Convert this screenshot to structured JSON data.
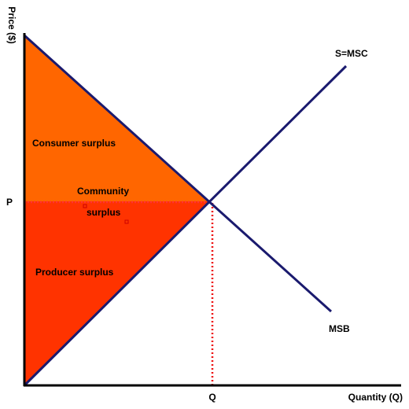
{
  "axes": {
    "y_label": "Price ($)",
    "x_label": "Quantity (Q)",
    "price_label": "P",
    "quantity_label": "Q"
  },
  "curves": {
    "supply": "S=MSC",
    "demand": "MSB"
  },
  "areas": {
    "consumer": "Consumer surplus",
    "community": [
      "Community",
      "surplus"
    ],
    "producer": "Producer surplus"
  }
}
